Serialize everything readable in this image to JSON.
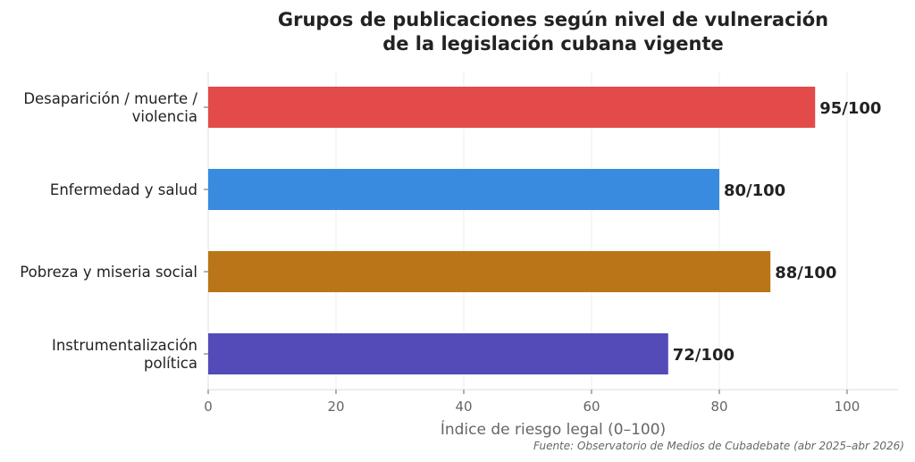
{
  "chart_data": {
    "type": "bar",
    "orientation": "horizontal",
    "title": [
      "Grupos de publicaciones según nivel de vulneración",
      "de la legislación cubana vigente"
    ],
    "categories": [
      [
        "Desaparición / muerte /",
        "violencia"
      ],
      [
        "Enfermedad y salud"
      ],
      [
        "Pobreza y miseria social"
      ],
      [
        "Instrumentalización",
        "política"
      ]
    ],
    "values": [
      95,
      80,
      88,
      72
    ],
    "value_labels": [
      "95/100",
      "80/100",
      "88/100",
      "72/100"
    ],
    "colors": [
      "#e34b4b",
      "#388bdf",
      "#b97517",
      "#534bb7"
    ],
    "xlabel": "Índice de riesgo legal (0–100)",
    "xticks": [
      0,
      20,
      40,
      60,
      80,
      100
    ],
    "xlim": [
      0,
      108
    ],
    "grid": true,
    "source": "Fuente: Observatorio de Medios de Cubadebate (abr 2025–abr 2026)"
  }
}
